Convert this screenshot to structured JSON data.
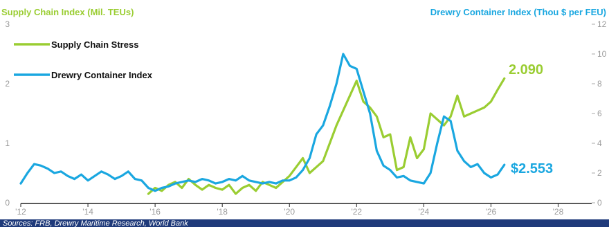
{
  "chart_data": {
    "type": "line",
    "left_axis_title": "Supply Chain Index (Mil. TEUs)",
    "right_axis_title": "Drewry Container Index (Thou $ per FEU)",
    "x_tick_labels": [
      "'12",
      "'14",
      "'16",
      "'18",
      "'20",
      "'22",
      "'24",
      "'26",
      "'28"
    ],
    "x_ticks": [
      2012,
      2014,
      2016,
      2018,
      2020,
      2022,
      2024,
      2026,
      2028
    ],
    "xlim": [
      2012,
      2029
    ],
    "y_left_ticks": [
      "0",
      "1",
      "2",
      "3"
    ],
    "y_left_lim": [
      0,
      3
    ],
    "y_right_ticks": [
      "0",
      "2",
      "4",
      "6",
      "8",
      "10",
      "12"
    ],
    "y_right_lim": [
      0,
      12
    ],
    "grid": false,
    "legend_position": "top-left",
    "series": [
      {
        "name": "Supply Chain Stress",
        "axis": "left",
        "color": "#9ACD32",
        "end_label": "2.090",
        "x": [
          2015.8,
          2016.0,
          2016.2,
          2016.4,
          2016.6,
          2016.8,
          2017.0,
          2017.2,
          2017.4,
          2017.6,
          2017.8,
          2018.0,
          2018.2,
          2018.4,
          2018.6,
          2018.8,
          2019.0,
          2019.2,
          2019.4,
          2019.6,
          2019.8,
          2020.0,
          2020.2,
          2020.4,
          2020.6,
          2020.8,
          2021.0,
          2021.2,
          2021.4,
          2021.6,
          2021.8,
          2022.0,
          2022.2,
          2022.4,
          2022.6,
          2022.8,
          2023.0,
          2023.2,
          2023.4,
          2023.6,
          2023.8,
          2024.0,
          2024.2,
          2024.4,
          2024.6,
          2024.8,
          2025.0,
          2025.2,
          2025.4,
          2025.6,
          2025.8,
          2026.0,
          2026.2,
          2026.4
        ],
        "values": [
          0.15,
          0.25,
          0.2,
          0.3,
          0.35,
          0.25,
          0.4,
          0.3,
          0.22,
          0.3,
          0.25,
          0.22,
          0.3,
          0.15,
          0.25,
          0.3,
          0.2,
          0.35,
          0.3,
          0.25,
          0.35,
          0.45,
          0.6,
          0.75,
          0.5,
          0.6,
          0.7,
          1.0,
          1.3,
          1.55,
          1.8,
          2.05,
          1.7,
          1.6,
          1.45,
          1.1,
          1.15,
          0.55,
          0.6,
          1.1,
          0.75,
          0.9,
          1.5,
          1.4,
          1.3,
          1.45,
          1.8,
          1.45,
          1.5,
          1.55,
          1.6,
          1.7,
          1.9,
          2.09
        ]
      },
      {
        "name": "Drewry Container Index",
        "axis": "right",
        "color": "#1AA7E0",
        "end_label": "$2.553",
        "x": [
          2012.0,
          2012.2,
          2012.4,
          2012.6,
          2012.8,
          2013.0,
          2013.2,
          2013.4,
          2013.6,
          2013.8,
          2014.0,
          2014.2,
          2014.4,
          2014.6,
          2014.8,
          2015.0,
          2015.2,
          2015.4,
          2015.6,
          2015.8,
          2016.0,
          2016.2,
          2016.4,
          2016.6,
          2016.8,
          2017.0,
          2017.2,
          2017.4,
          2017.6,
          2017.8,
          2018.0,
          2018.2,
          2018.4,
          2018.6,
          2018.8,
          2019.0,
          2019.2,
          2019.4,
          2019.6,
          2019.8,
          2020.0,
          2020.2,
          2020.4,
          2020.6,
          2020.8,
          2021.0,
          2021.2,
          2021.4,
          2021.6,
          2021.8,
          2022.0,
          2022.2,
          2022.4,
          2022.6,
          2022.8,
          2023.0,
          2023.2,
          2023.4,
          2023.6,
          2023.8,
          2024.0,
          2024.2,
          2024.4,
          2024.6,
          2024.8,
          2025.0,
          2025.2,
          2025.4,
          2025.6,
          2025.8,
          2026.0,
          2026.2,
          2026.4
        ],
        "values": [
          1.3,
          2.0,
          2.6,
          2.5,
          2.3,
          2.0,
          2.1,
          1.8,
          1.6,
          1.9,
          1.5,
          1.8,
          2.1,
          1.9,
          1.6,
          1.8,
          2.1,
          1.6,
          1.5,
          1.0,
          0.8,
          1.0,
          1.1,
          1.3,
          1.4,
          1.5,
          1.4,
          1.6,
          1.5,
          1.3,
          1.4,
          1.6,
          1.5,
          1.8,
          1.5,
          1.4,
          1.3,
          1.4,
          1.3,
          1.5,
          1.5,
          1.7,
          2.2,
          3.0,
          4.6,
          5.2,
          6.5,
          8.0,
          10.0,
          9.2,
          9.0,
          7.5,
          6.0,
          3.5,
          2.5,
          2.2,
          1.7,
          1.8,
          1.5,
          1.4,
          1.3,
          2.0,
          4.0,
          5.8,
          5.5,
          3.5,
          2.8,
          2.4,
          2.6,
          2.0,
          1.7,
          1.9,
          2.553
        ]
      }
    ]
  },
  "footer": {
    "sources": "Sources: FRB, Drewry Maritime Research, World Bank"
  }
}
